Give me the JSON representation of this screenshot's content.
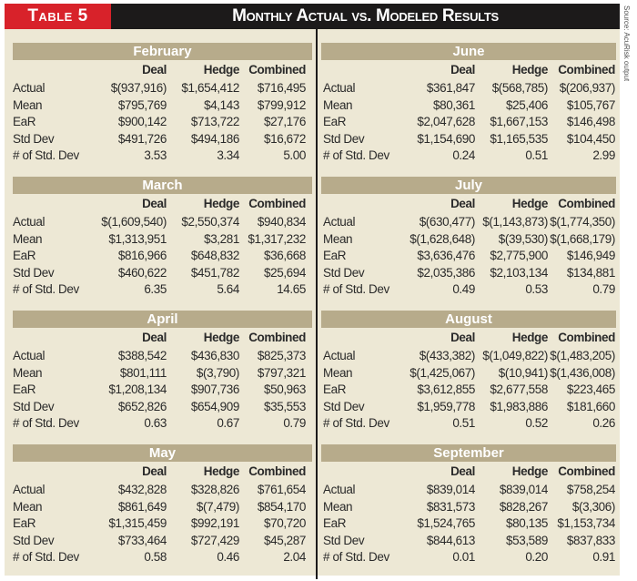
{
  "table_label": "Table 5",
  "title": "Monthly Actual vs. Modeled Results",
  "source": "Source: AcuRisk output",
  "columns": [
    "Deal",
    "Hedge",
    "Combined"
  ],
  "row_labels": [
    "Actual",
    "Mean",
    "EaR",
    "Std Dev",
    "# of Std. Dev"
  ],
  "left_sections": [
    {
      "month": "February",
      "rows": [
        [
          "$(937,916)",
          "$1,654,412",
          "$716,495"
        ],
        [
          "$795,769",
          "$4,143",
          "$799,912"
        ],
        [
          "$900,142",
          "$713,722",
          "$27,176"
        ],
        [
          "$491,726",
          "$494,186",
          "$16,672"
        ],
        [
          "3.53",
          "3.34",
          "5.00"
        ]
      ]
    },
    {
      "month": "March",
      "rows": [
        [
          "$(1,609,540)",
          "$2,550,374",
          "$940,834"
        ],
        [
          "$1,313,951",
          "$3,281",
          "$1,317,232"
        ],
        [
          "$816,966",
          "$648,832",
          "$36,668"
        ],
        [
          "$460,622",
          "$451,782",
          "$25,694"
        ],
        [
          "6.35",
          "5.64",
          "14.65"
        ]
      ]
    },
    {
      "month": "April",
      "rows": [
        [
          "$388,542",
          "$436,830",
          "$825,373"
        ],
        [
          "$801,111",
          "$(3,790)",
          "$797,321"
        ],
        [
          "$1,208,134",
          "$907,736",
          "$50,963"
        ],
        [
          "$652,826",
          "$654,909",
          "$35,553"
        ],
        [
          "0.63",
          "0.67",
          "0.79"
        ]
      ]
    },
    {
      "month": "May",
      "rows": [
        [
          "$432,828",
          "$328,826",
          "$761,654"
        ],
        [
          "$861,649",
          "$(7,479)",
          "$854,170"
        ],
        [
          "$1,315,459",
          "$992,191",
          "$70,720"
        ],
        [
          "$733,464",
          "$727,429",
          "$45,287"
        ],
        [
          "0.58",
          "0.46",
          "2.04"
        ]
      ]
    }
  ],
  "right_sections": [
    {
      "month": "June",
      "rows": [
        [
          "$361,847",
          "$(568,785)",
          "$(206,937)"
        ],
        [
          "$80,361",
          "$25,406",
          "$105,767"
        ],
        [
          "$2,047,628",
          "$1,667,153",
          "$146,498"
        ],
        [
          "$1,154,690",
          "$1,165,535",
          "$104,450"
        ],
        [
          "0.24",
          "0.51",
          "2.99"
        ]
      ]
    },
    {
      "month": "July",
      "rows": [
        [
          "$(630,477)",
          "$(1,143,873)",
          "$(1,774,350)"
        ],
        [
          "$(1,628,648)",
          "$(39,530)",
          "$(1,668,179)"
        ],
        [
          "$3,636,476",
          "$2,775,900",
          "$146,949"
        ],
        [
          "$2,035,386",
          "$2,103,134",
          "$134,881"
        ],
        [
          "0.49",
          "0.53",
          "0.79"
        ]
      ]
    },
    {
      "month": "August",
      "rows": [
        [
          "$(433,382)",
          "$(1,049,822)",
          "$(1,483,205)"
        ],
        [
          "$(1,425,067)",
          "$(10,941)",
          "$(1,436,008)"
        ],
        [
          "$3,612,855",
          "$2,677,558",
          "$223,465"
        ],
        [
          "$1,959,778",
          "$1,983,886",
          "$181,660"
        ],
        [
          "0.51",
          "0.52",
          "0.26"
        ]
      ]
    },
    {
      "month": "September",
      "rows": [
        [
          "$839,014",
          "$839,014",
          "$758,254"
        ],
        [
          "$831,573",
          "$828,267",
          "$(3,306)"
        ],
        [
          "$1,524,765",
          "$80,135",
          "$1,153,734"
        ],
        [
          "$844,613",
          "$53,589",
          "$837,833"
        ],
        [
          "0.01",
          "0.20",
          "0.91"
        ]
      ]
    }
  ]
}
